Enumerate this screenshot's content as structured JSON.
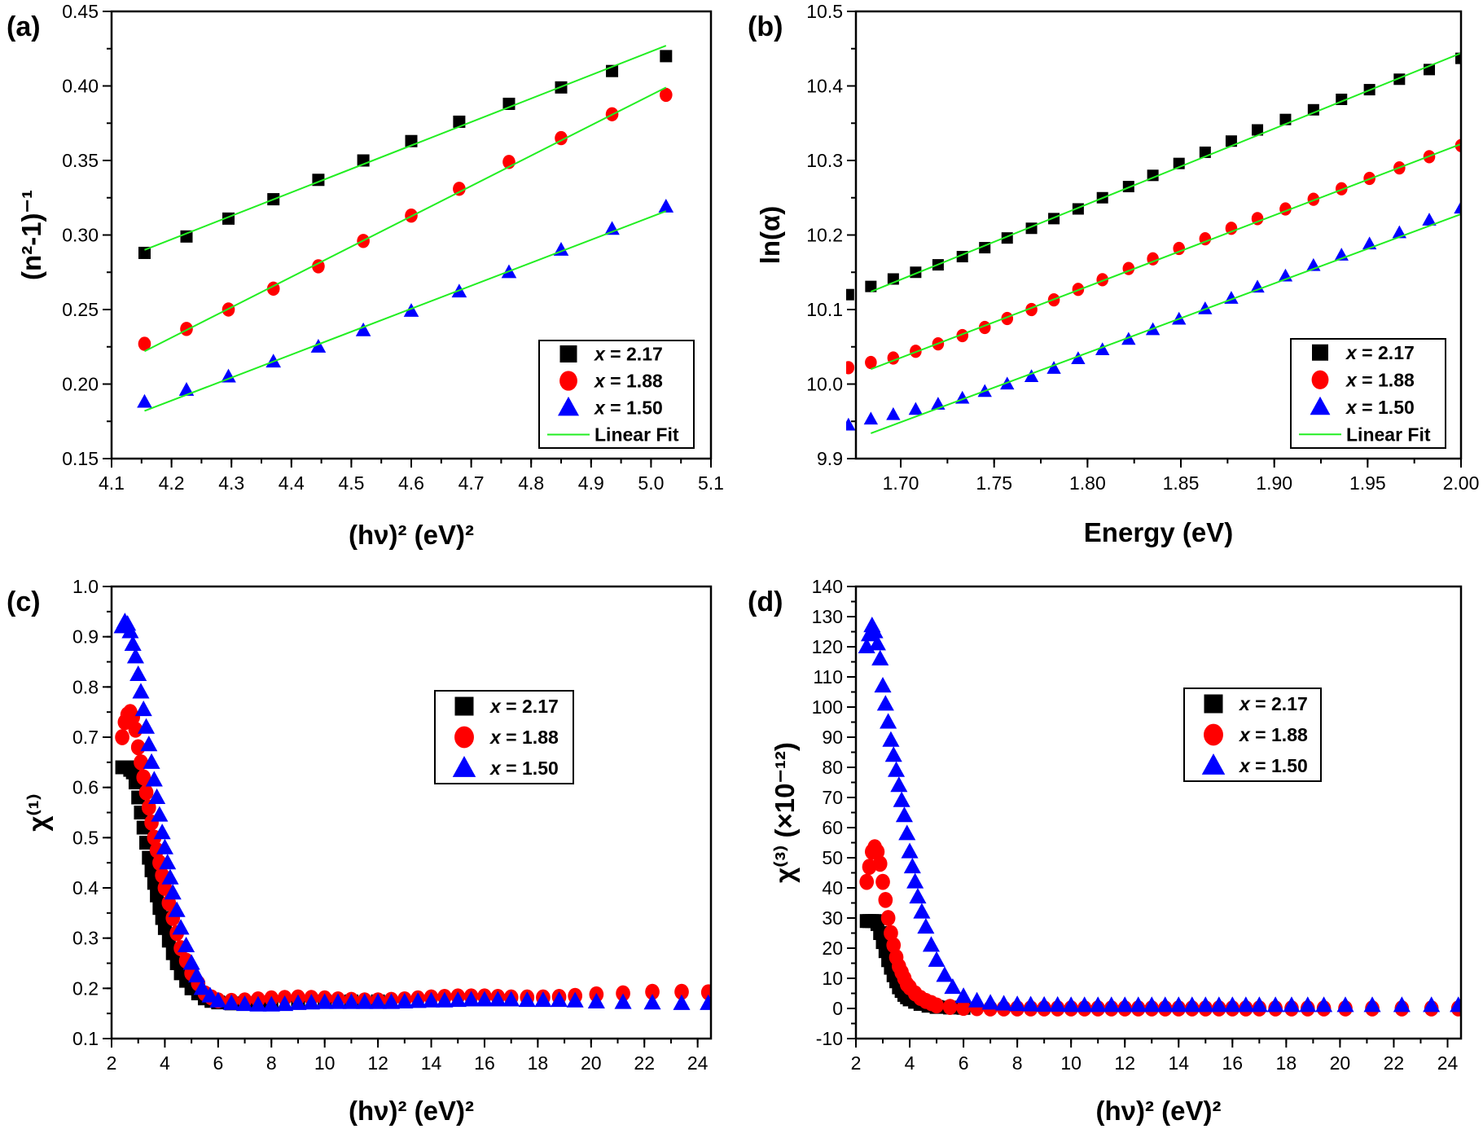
{
  "colors": {
    "x217": "#000000",
    "x188": "#ff0000",
    "x150": "#0000ff",
    "fit": "#22ee22"
  },
  "chart_data": [
    {
      "panel": "(a)",
      "type": "scatter",
      "xlabel": "(hν)² (eV)²",
      "ylabel": "(n²-1)⁻¹",
      "xlim": [
        4.1,
        5.1
      ],
      "ylim": [
        0.15,
        0.45
      ],
      "xticks": [
        "4.1",
        "4.2",
        "4.3",
        "4.4",
        "4.5",
        "4.6",
        "4.7",
        "4.8",
        "4.9",
        "5.0",
        "5.1"
      ],
      "yticks": [
        "0.15",
        "0.20",
        "0.25",
        "0.30",
        "0.35",
        "0.40",
        "0.45"
      ],
      "legend": "bottom-right",
      "x": [
        4.155,
        4.225,
        4.295,
        4.37,
        4.445,
        4.52,
        4.6,
        4.68,
        4.763,
        4.85,
        4.935,
        5.025
      ],
      "series": [
        {
          "name": "x = 2.17",
          "marker": "square",
          "color": "#000000",
          "y": [
            0.288,
            0.299,
            0.311,
            0.324,
            0.337,
            0.35,
            0.363,
            0.376,
            0.388,
            0.399,
            0.41,
            0.42
          ],
          "fit": [
            [
              4.155,
              0.29
            ],
            [
              5.025,
              0.427
            ]
          ]
        },
        {
          "name": "x = 1.88",
          "marker": "circle",
          "color": "#ff0000",
          "y": [
            0.227,
            0.237,
            0.25,
            0.264,
            0.279,
            0.296,
            0.313,
            0.331,
            0.349,
            0.365,
            0.381,
            0.394
          ],
          "fit": [
            [
              4.155,
              0.222
            ],
            [
              5.025,
              0.399
            ]
          ]
        },
        {
          "name": "x = 1.50",
          "marker": "triangle",
          "color": "#0000ff",
          "y": [
            0.188,
            0.196,
            0.205,
            0.215,
            0.225,
            0.236,
            0.249,
            0.262,
            0.275,
            0.29,
            0.304,
            0.319
          ],
          "fit": [
            [
              4.155,
              0.182
            ],
            [
              5.025,
              0.316
            ]
          ]
        }
      ],
      "fit_label": "Linear Fit"
    },
    {
      "panel": "(b)",
      "type": "scatter",
      "xlabel": "Energy (eV)",
      "ylabel": "ln(α)",
      "xlim": [
        1.676,
        2.0
      ],
      "ylim": [
        9.9,
        10.5
      ],
      "xticks": [
        "1.70",
        "1.75",
        "1.80",
        "1.85",
        "1.90",
        "1.95",
        "2.00"
      ],
      "yticks": [
        "9.9",
        "10.0",
        "10.1",
        "10.2",
        "10.3",
        "10.4",
        "10.5"
      ],
      "legend": "bottom-right",
      "x": [
        1.672,
        1.684,
        1.696,
        1.708,
        1.72,
        1.733,
        1.745,
        1.757,
        1.77,
        1.782,
        1.795,
        1.808,
        1.822,
        1.835,
        1.849,
        1.863,
        1.877,
        1.891,
        1.906,
        1.921,
        1.936,
        1.951,
        1.967,
        1.983,
        2.0
      ],
      "series": [
        {
          "name": "x = 2.17",
          "marker": "square",
          "color": "#000000",
          "y": [
            10.12,
            10.131,
            10.141,
            10.15,
            10.16,
            10.171,
            10.183,
            10.196,
            10.209,
            10.222,
            10.235,
            10.25,
            10.265,
            10.28,
            10.296,
            10.311,
            10.326,
            10.341,
            10.355,
            10.368,
            10.382,
            10.395,
            10.409,
            10.422,
            10.437
          ],
          "fit": [
            [
              1.684,
              10.124
            ],
            [
              2.0,
              10.444
            ]
          ]
        },
        {
          "name": "x = 1.88",
          "marker": "circle",
          "color": "#ff0000",
          "y": [
            10.022,
            10.029,
            10.035,
            10.044,
            10.054,
            10.065,
            10.076,
            10.088,
            10.1,
            10.113,
            10.127,
            10.14,
            10.155,
            10.168,
            10.182,
            10.195,
            10.209,
            10.222,
            10.235,
            10.248,
            10.262,
            10.276,
            10.29,
            10.305,
            10.32
          ],
          "fit": [
            [
              1.684,
              10.02
            ],
            [
              2.0,
              10.322
            ]
          ]
        },
        {
          "name": "x = 1.50",
          "marker": "triangle",
          "color": "#0000ff",
          "y": [
            9.945,
            9.953,
            9.959,
            9.966,
            9.973,
            9.981,
            9.99,
            10.0,
            10.01,
            10.021,
            10.034,
            10.046,
            10.06,
            10.073,
            10.087,
            10.101,
            10.115,
            10.13,
            10.145,
            10.159,
            10.173,
            10.188,
            10.203,
            10.22,
            10.236
          ],
          "fit": [
            [
              1.684,
              9.934
            ],
            [
              2.0,
              10.228
            ]
          ]
        }
      ],
      "fit_label": "Linear Fit"
    },
    {
      "panel": "(c)",
      "type": "scatter",
      "xlabel": "(hν)² (eV)²",
      "ylabel": "χ⁽¹⁾",
      "xlim": [
        2,
        24.5
      ],
      "ylim": [
        0.1,
        1.0
      ],
      "xticks": [
        "2",
        "4",
        "6",
        "8",
        "10",
        "12",
        "14",
        "16",
        "18",
        "20",
        "22",
        "24"
      ],
      "yticks": [
        "0.1",
        "0.2",
        "0.3",
        "0.4",
        "0.5",
        "0.6",
        "0.7",
        "0.8",
        "0.9",
        "1.0"
      ],
      "legend": "top-right",
      "series": [
        {
          "name": "x = 2.17",
          "marker": "square",
          "color": "#000000",
          "x": [
            2.4,
            2.5,
            2.6,
            2.7,
            2.8,
            2.9,
            3.0,
            3.1,
            3.2,
            3.3,
            3.4,
            3.5,
            3.6,
            3.7,
            3.8,
            3.9,
            4.0,
            4.15,
            4.3,
            4.45,
            4.6,
            4.8,
            5.0,
            5.25,
            5.5,
            5.75,
            6.0,
            6.5,
            7,
            7.5,
            8,
            9,
            10,
            11,
            12
          ],
          "y": [
            0.64,
            0.64,
            0.64,
            0.635,
            0.63,
            0.61,
            0.58,
            0.55,
            0.52,
            0.49,
            0.46,
            0.435,
            0.41,
            0.385,
            0.36,
            0.34,
            0.32,
            0.295,
            0.27,
            0.25,
            0.23,
            0.215,
            0.2,
            0.19,
            0.18,
            0.175,
            0.172,
            0.17,
            0.17,
            0.171,
            0.172,
            0.173,
            0.174,
            0.174,
            0.174
          ]
        },
        {
          "name": "x = 1.88",
          "marker": "circle",
          "color": "#ff0000",
          "x": [
            2.4,
            2.5,
            2.6,
            2.7,
            2.8,
            2.9,
            3.0,
            3.1,
            3.2,
            3.3,
            3.4,
            3.5,
            3.6,
            3.7,
            3.8,
            3.9,
            4.0,
            4.15,
            4.3,
            4.45,
            4.6,
            4.8,
            5.0,
            5.25,
            5.5,
            5.75,
            6.0,
            6.5,
            7,
            7.5,
            8,
            8.5,
            9,
            9.5,
            10,
            10.5,
            11,
            11.5,
            12,
            12.5,
            13,
            13.5,
            14,
            14.5,
            15,
            15.5,
            16,
            16.5,
            17,
            17.6,
            18.2,
            18.8,
            19.4,
            20.2,
            21.2,
            22.3,
            23.4,
            24.4
          ],
          "y": [
            0.7,
            0.73,
            0.745,
            0.75,
            0.74,
            0.715,
            0.68,
            0.65,
            0.62,
            0.59,
            0.56,
            0.53,
            0.5,
            0.475,
            0.45,
            0.425,
            0.4,
            0.37,
            0.34,
            0.31,
            0.28,
            0.255,
            0.23,
            0.21,
            0.19,
            0.182,
            0.176,
            0.175,
            0.176,
            0.178,
            0.18,
            0.181,
            0.182,
            0.181,
            0.18,
            0.178,
            0.177,
            0.176,
            0.176,
            0.177,
            0.178,
            0.18,
            0.182,
            0.183,
            0.184,
            0.184,
            0.184,
            0.183,
            0.182,
            0.182,
            0.182,
            0.183,
            0.185,
            0.188,
            0.19,
            0.193,
            0.193,
            0.192
          ]
        },
        {
          "name": "x = 1.50",
          "marker": "triangle",
          "color": "#0000ff",
          "x": [
            2.4,
            2.5,
            2.6,
            2.7,
            2.8,
            2.9,
            3.0,
            3.1,
            3.2,
            3.3,
            3.4,
            3.5,
            3.6,
            3.7,
            3.8,
            3.9,
            4.0,
            4.1,
            4.2,
            4.3,
            4.45,
            4.6,
            4.8,
            5.0,
            5.2,
            5.4,
            5.7,
            6.0,
            6.5,
            7,
            7.5,
            8,
            8.5,
            9,
            9.5,
            10,
            10.5,
            11,
            11.5,
            12,
            12.5,
            13,
            13.5,
            14,
            14.5,
            15,
            15.5,
            16,
            16.5,
            17,
            17.6,
            18.2,
            18.8,
            19.4,
            20.2,
            21.2,
            22.3,
            23.4,
            24.4
          ],
          "y": [
            0.92,
            0.93,
            0.925,
            0.91,
            0.885,
            0.86,
            0.825,
            0.79,
            0.755,
            0.72,
            0.685,
            0.65,
            0.615,
            0.58,
            0.545,
            0.51,
            0.48,
            0.45,
            0.42,
            0.39,
            0.355,
            0.32,
            0.285,
            0.25,
            0.225,
            0.2,
            0.185,
            0.175,
            0.17,
            0.168,
            0.167,
            0.167,
            0.168,
            0.17,
            0.171,
            0.172,
            0.172,
            0.172,
            0.172,
            0.172,
            0.172,
            0.173,
            0.174,
            0.175,
            0.175,
            0.176,
            0.177,
            0.177,
            0.177,
            0.177,
            0.176,
            0.176,
            0.176,
            0.175,
            0.173,
            0.172,
            0.171,
            0.17,
            0.17
          ]
        }
      ]
    },
    {
      "panel": "(d)",
      "type": "scatter",
      "xlabel": "(hν)² (eV)²",
      "ylabel": "χ⁽³⁾ (×10⁻¹²)",
      "xlim": [
        2,
        24.5
      ],
      "ylim": [
        -10,
        140
      ],
      "xticks": [
        "2",
        "4",
        "6",
        "8",
        "10",
        "12",
        "14",
        "16",
        "18",
        "20",
        "22",
        "24"
      ],
      "yticks": [
        "-10",
        "0",
        "10",
        "20",
        "30",
        "40",
        "50",
        "60",
        "70",
        "80",
        "90",
        "100",
        "110",
        "120",
        "130",
        "140"
      ],
      "legend": "top-right",
      "series": [
        {
          "name": "x = 2.17",
          "marker": "square",
          "color": "#000000",
          "x": [
            2.4,
            2.5,
            2.6,
            2.7,
            2.8,
            2.9,
            3.0,
            3.1,
            3.2,
            3.3,
            3.4,
            3.5,
            3.6,
            3.7,
            3.8,
            3.9,
            4.0,
            4.2,
            4.4,
            4.7,
            5.0,
            5.5,
            6.0
          ],
          "y": [
            29,
            29,
            29,
            29,
            28,
            25,
            22,
            19,
            16,
            13.5,
            11,
            9,
            7,
            5.8,
            4.5,
            3.7,
            3,
            2.2,
            1.5,
            0.9,
            0.5,
            0.3,
            0.2
          ]
        },
        {
          "name": "x = 1.88",
          "marker": "circle",
          "color": "#ff0000",
          "x": [
            2.4,
            2.5,
            2.6,
            2.7,
            2.8,
            2.9,
            3.0,
            3.1,
            3.2,
            3.3,
            3.4,
            3.5,
            3.6,
            3.7,
            3.8,
            3.9,
            4.0,
            4.2,
            4.4,
            4.6,
            4.8,
            5.0,
            5.5,
            6.0,
            6.5,
            7,
            7.5,
            8,
            8.5,
            9,
            9.5,
            10,
            10.5,
            11,
            11.5,
            12,
            12.5,
            13,
            13.5,
            14,
            14.5,
            15,
            15.5,
            16,
            16.5,
            17,
            17.6,
            18.2,
            18.8,
            19.4,
            20.2,
            21.2,
            22.3,
            23.4,
            24.4
          ],
          "y": [
            42,
            47,
            52,
            53.5,
            52,
            48,
            42,
            36,
            30,
            25,
            21,
            17,
            14,
            12,
            10,
            8,
            7,
            5,
            3.5,
            2.5,
            1.8,
            1,
            0.5,
            0.2,
            0.1,
            0,
            0,
            0,
            0,
            0,
            0,
            0,
            0,
            0,
            0,
            0,
            0,
            0,
            0,
            0,
            0,
            0,
            0,
            0,
            0,
            0,
            0,
            0,
            0,
            0,
            0,
            0,
            0,
            0,
            0
          ]
        },
        {
          "name": "x = 1.50",
          "marker": "triangle",
          "color": "#0000ff",
          "x": [
            2.4,
            2.5,
            2.6,
            2.7,
            2.8,
            2.9,
            3.0,
            3.1,
            3.2,
            3.3,
            3.4,
            3.5,
            3.6,
            3.7,
            3.8,
            3.9,
            4.0,
            4.1,
            4.2,
            4.3,
            4.45,
            4.6,
            4.8,
            5.0,
            5.3,
            5.6,
            6.0,
            6.5,
            7,
            7.5,
            8,
            8.5,
            9,
            9.5,
            10,
            10.5,
            11,
            11.5,
            12,
            12.5,
            13,
            13.5,
            14,
            14.5,
            15,
            15.5,
            16,
            16.5,
            17,
            17.6,
            18.2,
            18.8,
            19.4,
            20.2,
            21.2,
            22.3,
            23.4,
            24.4
          ],
          "y": [
            120,
            124,
            127,
            125,
            121,
            116,
            107,
            101,
            95,
            89,
            84,
            79,
            74,
            69,
            64,
            58,
            52,
            47,
            42,
            37,
            32,
            27,
            21,
            16,
            11,
            7,
            4,
            2.5,
            1.8,
            1.5,
            1.3,
            1.2,
            1.1,
            1.1,
            1,
            1,
            1,
            1,
            1,
            1,
            1,
            1,
            1,
            1,
            1,
            1,
            1,
            1,
            1,
            1,
            1,
            1,
            1,
            1,
            1,
            1,
            1,
            1
          ]
        }
      ]
    }
  ]
}
